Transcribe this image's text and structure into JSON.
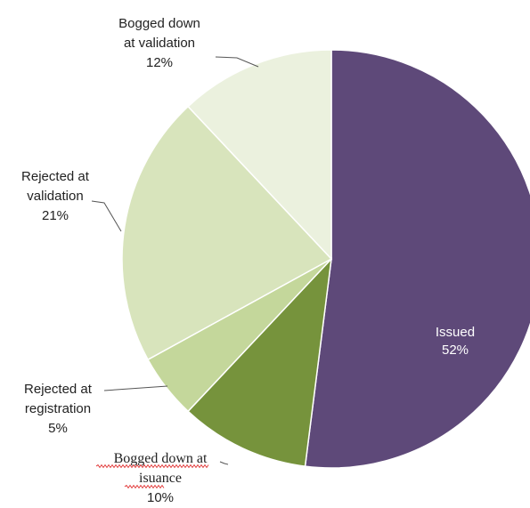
{
  "chart_data": {
    "type": "pie",
    "slices": [
      {
        "key": "issued",
        "label": [
          "Issued"
        ],
        "pct_label": "52%",
        "value": 52,
        "color": "#5e4979"
      },
      {
        "key": "bogged-issuance",
        "label": [
          "Bogged down at",
          "isuance"
        ],
        "pct_label": "10%",
        "value": 10,
        "color": "#76933c"
      },
      {
        "key": "rejected-registration",
        "label": [
          "Rejected at",
          "registration"
        ],
        "pct_label": "5%",
        "value": 5,
        "color": "#c4d79b"
      },
      {
        "key": "rejected-validation",
        "label": [
          "Rejected at",
          "validation"
        ],
        "pct_label": "21%",
        "value": 21,
        "color": "#d8e4bc"
      },
      {
        "key": "bogged-validation",
        "label": [
          "Bogged down",
          "at validation"
        ],
        "pct_label": "12%",
        "value": 12,
        "color": "#ebf1de"
      }
    ],
    "start": "12 o'clock",
    "direction": "clockwise",
    "legend": "none",
    "data_labels": "category and percentage"
  }
}
